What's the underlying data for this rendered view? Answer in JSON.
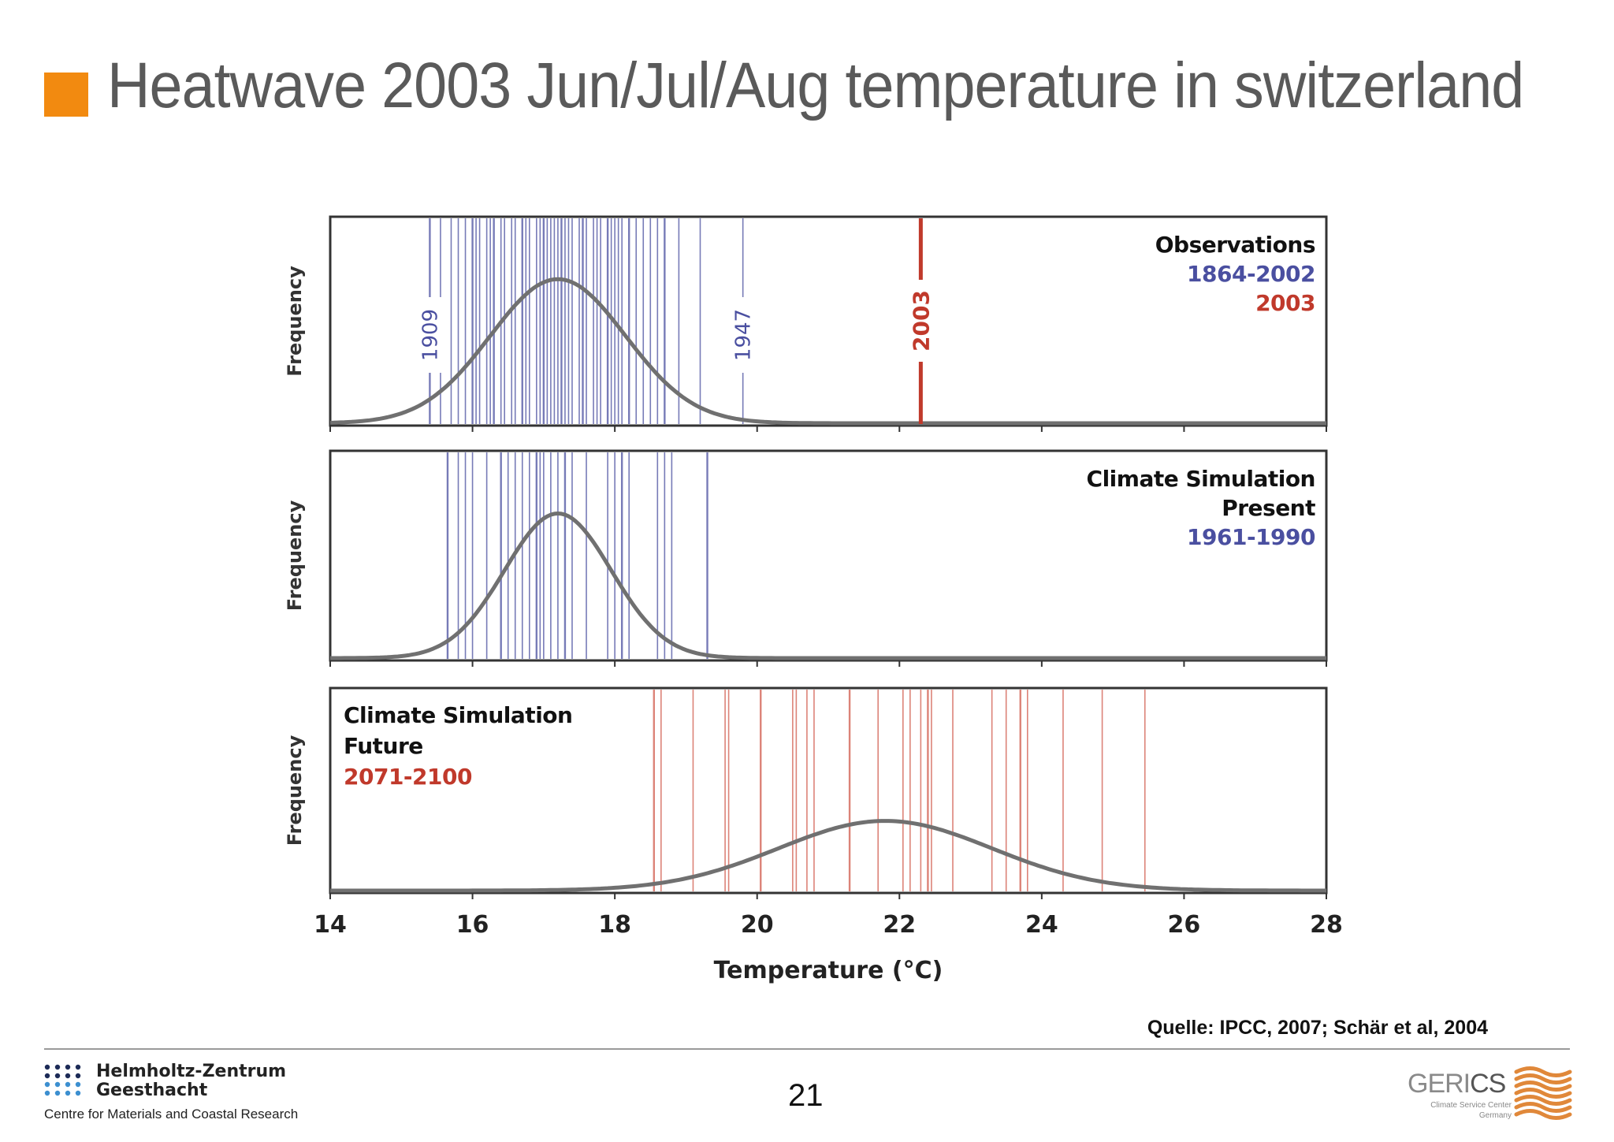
{
  "slide": {
    "title": "Heatwave 2003 Jun/Jul/Aug temperature in switzerland",
    "accent_color": "#f28a10",
    "source": "Quelle: IPCC, 2007; Schär et al, 2004",
    "page_number": "21"
  },
  "footer": {
    "hzg_line1": "Helmholtz-Zentrum",
    "hzg_line2": "Geesthacht",
    "hzg_sub": "Centre for Materials and Coastal Research",
    "gerics_word_a": "GERI",
    "gerics_word_b": "CS",
    "gerics_sub1": "Climate Service Center",
    "gerics_sub2": "Germany"
  },
  "chart_data": {
    "type": "line",
    "xlabel": "Temperature (°C)",
    "xlim": [
      14,
      28
    ],
    "x_ticks": [
      "14",
      "16",
      "18",
      "20",
      "22",
      "24",
      "26",
      "28"
    ],
    "colors": {
      "observed": "#4a4fa0",
      "heatwave": "#c0392b",
      "curve": "#707070",
      "future": "#d9766a"
    },
    "panels": [
      {
        "ylabel": "Frequency",
        "legend": [
          "Observations",
          "1864-2002",
          "2003"
        ],
        "curve": {
          "mean": 17.2,
          "sd": 0.95
        },
        "year_lines": [
          15.4,
          15.55,
          15.7,
          15.8,
          15.9,
          16.0,
          16.05,
          16.1,
          16.2,
          16.25,
          16.3,
          16.4,
          16.45,
          16.55,
          16.6,
          16.7,
          16.75,
          16.8,
          16.9,
          16.95,
          17.0,
          17.05,
          17.1,
          17.15,
          17.2,
          17.25,
          17.3,
          17.35,
          17.4,
          17.5,
          17.55,
          17.6,
          17.7,
          17.75,
          17.8,
          17.9,
          17.95,
          18.0,
          18.05,
          18.1,
          18.2,
          18.3,
          18.4,
          18.5,
          18.6,
          18.7,
          18.9,
          19.2,
          19.8
        ],
        "year_labels": [
          {
            "year": "1909",
            "x": 15.4
          },
          {
            "year": "1947",
            "x": 19.8
          }
        ],
        "event": {
          "year": "2003",
          "x": 22.3
        }
      },
      {
        "ylabel": "Frequency",
        "legend": [
          "Climate Simulation",
          "Present",
          "1961-1990"
        ],
        "curve": {
          "mean": 17.2,
          "sd": 0.75
        },
        "year_lines": [
          15.65,
          15.8,
          15.9,
          16.0,
          16.2,
          16.4,
          16.5,
          16.6,
          16.7,
          16.8,
          16.9,
          16.95,
          17.0,
          17.1,
          17.2,
          17.3,
          17.4,
          17.6,
          17.9,
          18.0,
          18.1,
          18.2,
          18.6,
          18.7,
          18.8,
          19.3
        ]
      },
      {
        "ylabel": "Frequency",
        "legend": [
          "Climate Simulation",
          "Future",
          "2071-2100"
        ],
        "curve": {
          "mean": 21.8,
          "sd": 1.5
        },
        "year_lines": [
          18.55,
          18.65,
          19.1,
          19.55,
          19.6,
          20.05,
          20.5,
          20.55,
          20.7,
          20.8,
          21.3,
          21.7,
          22.05,
          22.15,
          22.3,
          22.4,
          22.45,
          22.75,
          23.3,
          23.5,
          23.7,
          23.8,
          24.3,
          24.85,
          25.45
        ]
      }
    ]
  }
}
